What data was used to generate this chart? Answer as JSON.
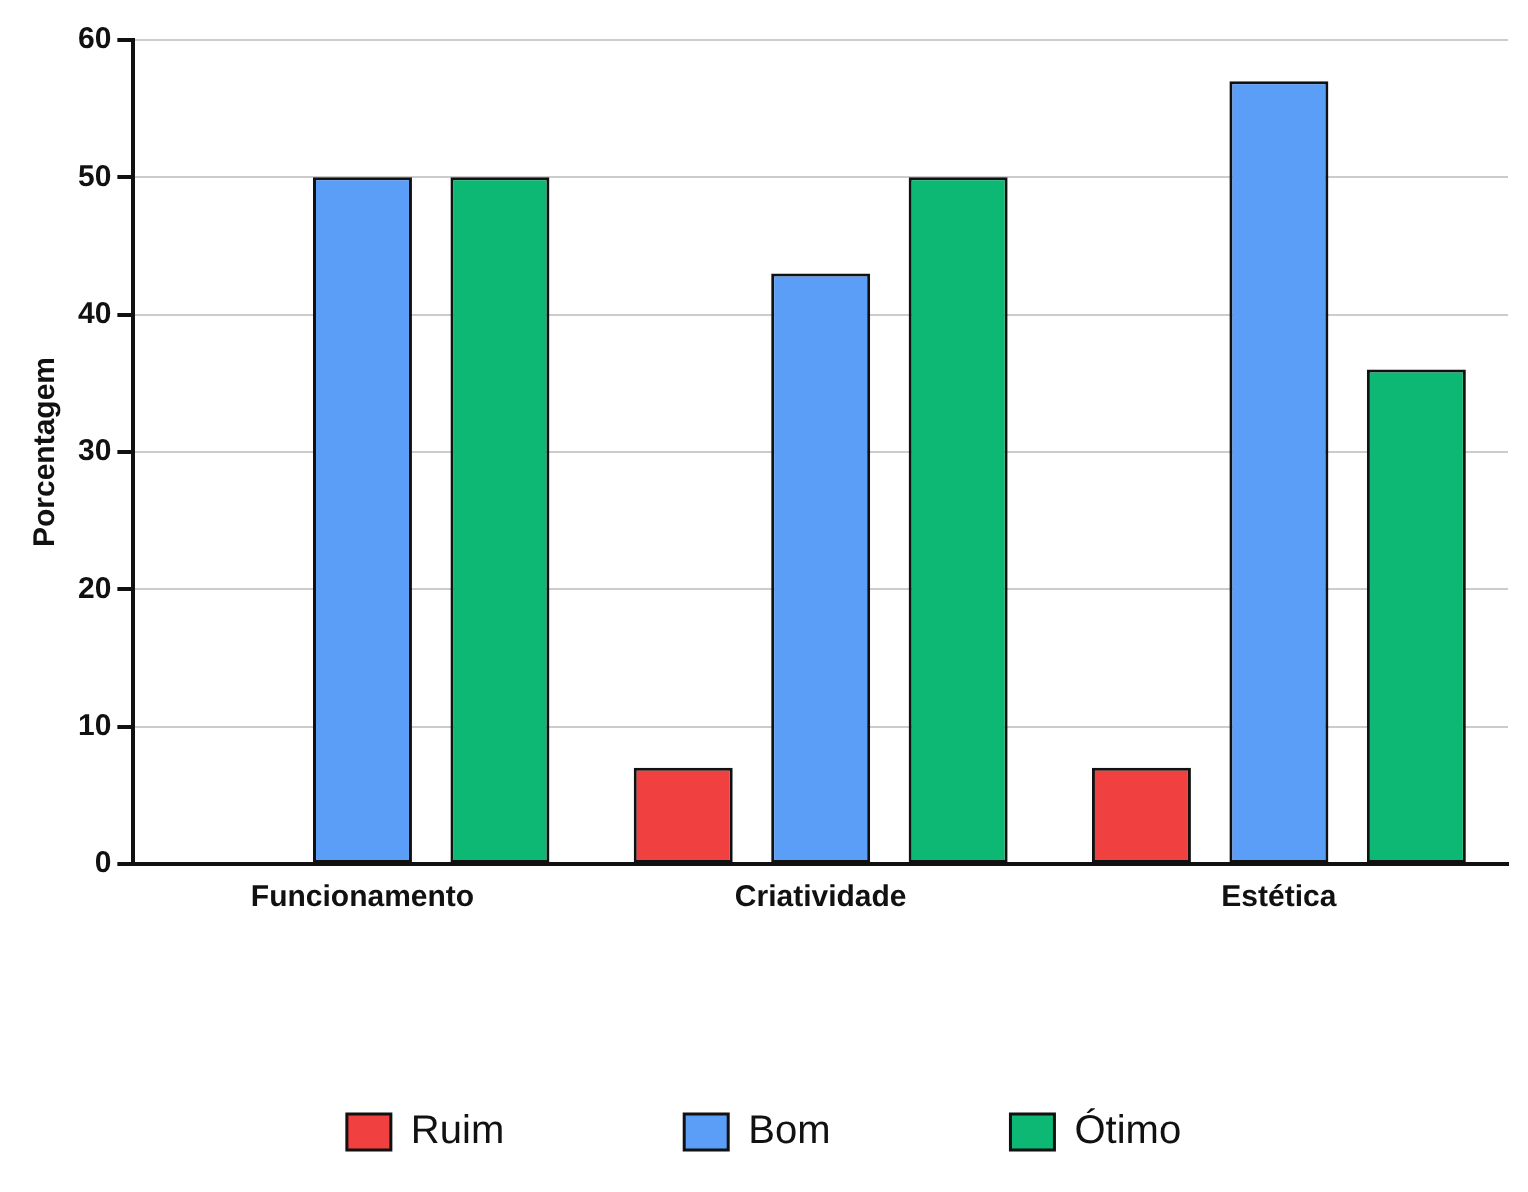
{
  "chart_data": {
    "type": "bar",
    "ylabel": "Porcentagem",
    "categories": [
      "Funcionamento",
      "Criatividade",
      "Estética"
    ],
    "series": [
      {
        "name": "Ruim",
        "color": "#f04040",
        "values": [
          0,
          7,
          7
        ]
      },
      {
        "name": "Bom",
        "color": "#5b9ef8",
        "values": [
          50,
          43,
          57
        ]
      },
      {
        "name": "Ótimo",
        "color": "#0db874",
        "values": [
          50,
          50,
          36
        ]
      }
    ],
    "ylim": [
      0,
      60
    ],
    "yticks": [
      0,
      10,
      20,
      30,
      40,
      50,
      60
    ],
    "grid": "y",
    "legend": "bottom"
  }
}
